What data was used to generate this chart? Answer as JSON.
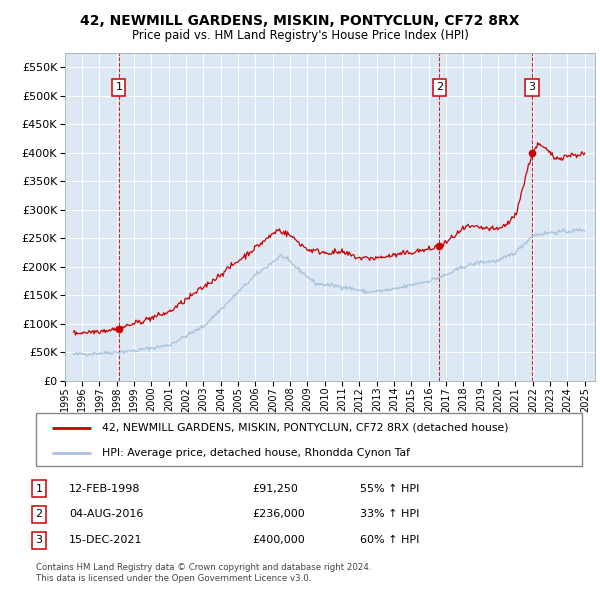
{
  "title1": "42, NEWMILL GARDENS, MISKIN, PONTYCLUN, CF72 8RX",
  "title2": "Price paid vs. HM Land Registry's House Price Index (HPI)",
  "legend_line1": "42, NEWMILL GARDENS, MISKIN, PONTYCLUN, CF72 8RX (detached house)",
  "legend_line2": "HPI: Average price, detached house, Rhondda Cynon Taf",
  "footer1": "Contains HM Land Registry data © Crown copyright and database right 2024.",
  "footer2": "This data is licensed under the Open Government Licence v3.0.",
  "transactions": [
    {
      "num": 1,
      "date": "12-FEB-1998",
      "price": "£91,250",
      "hpi_pct": "55% ↑ HPI",
      "year": 1998.12,
      "price_val": 91250
    },
    {
      "num": 2,
      "date": "04-AUG-2016",
      "price": "£236,000",
      "hpi_pct": "33% ↑ HPI",
      "year": 2016.6,
      "price_val": 236000
    },
    {
      "num": 3,
      "date": "15-DEC-2021",
      "price": "£400,000",
      "hpi_pct": "60% ↑ HPI",
      "year": 2021.96,
      "price_val": 400000
    }
  ],
  "hpi_color": "#aac4dd",
  "price_color": "#cc0000",
  "bg_color": "#dce9f5",
  "ylim": [
    0,
    575000
  ],
  "yticks": [
    0,
    50000,
    100000,
    150000,
    200000,
    250000,
    300000,
    350000,
    400000,
    450000,
    500000,
    550000
  ],
  "xlim": [
    1995.2,
    2025.6
  ],
  "xlabel_years": [
    1995,
    1996,
    1997,
    1998,
    1999,
    2000,
    2001,
    2002,
    2003,
    2004,
    2005,
    2006,
    2007,
    2008,
    2009,
    2010,
    2011,
    2012,
    2013,
    2014,
    2015,
    2016,
    2017,
    2018,
    2019,
    2020,
    2021,
    2022,
    2023,
    2024,
    2025
  ]
}
